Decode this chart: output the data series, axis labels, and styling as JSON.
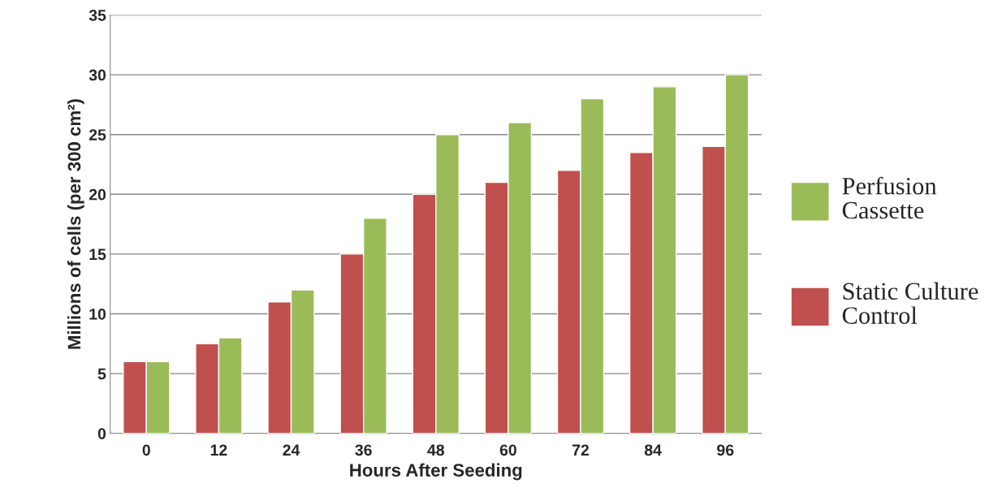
{
  "chart_data": {
    "type": "bar",
    "xlabel": "Hours After Seeding",
    "ylabel": "Millions of cells (per 300 cm²)",
    "categories": [
      "0",
      "12",
      "24",
      "36",
      "48",
      "60",
      "72",
      "84",
      "96"
    ],
    "series": [
      {
        "name": "Static Culture Control",
        "color": "#c0504d",
        "values": [
          6,
          7.5,
          11,
          15,
          20,
          21,
          22,
          23.5,
          24
        ]
      },
      {
        "name": "Perfusion Cassette",
        "color": "#9bbb59",
        "values": [
          6,
          8,
          12,
          18,
          25,
          26,
          28,
          29,
          30
        ]
      }
    ],
    "ylim": [
      0,
      35
    ],
    "yticks": [
      0,
      5,
      10,
      15,
      20,
      25,
      30,
      35
    ],
    "grid": "y",
    "legend": "right"
  }
}
